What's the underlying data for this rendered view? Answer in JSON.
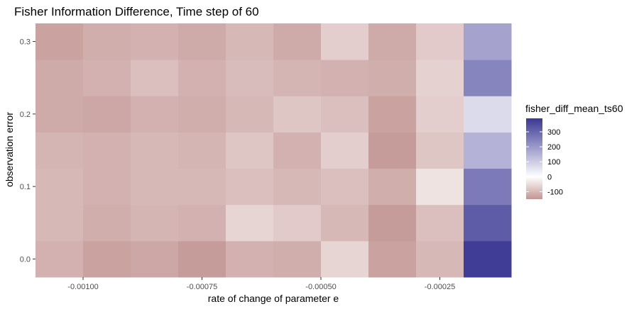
{
  "chart_data": {
    "type": "heatmap",
    "title": "Fisher Information Difference, Time step of 60",
    "xlabel": "rate of change of parameter e",
    "ylabel": "observation error",
    "x_ticks": [
      "-0.00100",
      "-0.00075",
      "-0.00050",
      "-0.00025"
    ],
    "y_ticks": [
      "0.0",
      "0.1",
      "0.2",
      "0.3"
    ],
    "x": [
      -0.00105,
      -0.00095,
      -0.00085,
      -0.00075,
      -0.00065,
      -0.00055,
      -0.00045,
      -0.00035,
      -0.00025,
      -0.00015
    ],
    "y": [
      0.0,
      0.05,
      0.1,
      0.15,
      0.2,
      0.25,
      0.3
    ],
    "z": [
      [
        -110,
        -130,
        -125,
        -140,
        -110,
        -115,
        -60,
        -130,
        -100,
        380
      ],
      [
        -100,
        -115,
        -105,
        -110,
        -60,
        -75,
        -100,
        -140,
        -90,
        320
      ],
      [
        -100,
        -110,
        -100,
        -100,
        -90,
        -100,
        -90,
        -115,
        -40,
        260
      ],
      [
        -105,
        -110,
        -100,
        -105,
        -80,
        -110,
        -70,
        -140,
        -80,
        150
      ],
      [
        -120,
        -125,
        -110,
        -115,
        -100,
        -80,
        -90,
        -130,
        -70,
        70
      ],
      [
        -120,
        -110,
        -90,
        -110,
        -95,
        -105,
        -110,
        -115,
        -65,
        240
      ],
      [
        -130,
        -115,
        -110,
        -120,
        -100,
        -120,
        -70,
        -120,
        -75,
        180
      ]
    ],
    "zlim": [
      -150,
      390
    ],
    "x_range": [
      -0.0011,
      -0.0001
    ],
    "y_range": [
      -0.025,
      0.325
    ],
    "colors": {
      "low": "#c29593",
      "mid": "#ffffff",
      "high": "#3b3894",
      "panel": "#ebebeb",
      "grid": "#ffffff"
    },
    "legend": {
      "title": "fisher_diff_mean_ts60",
      "ticks": [
        300,
        200,
        100,
        0,
        -100
      ],
      "tick_labels": [
        "300",
        "200",
        "100",
        "0",
        "-100"
      ],
      "position": "right"
    },
    "grid": true
  }
}
